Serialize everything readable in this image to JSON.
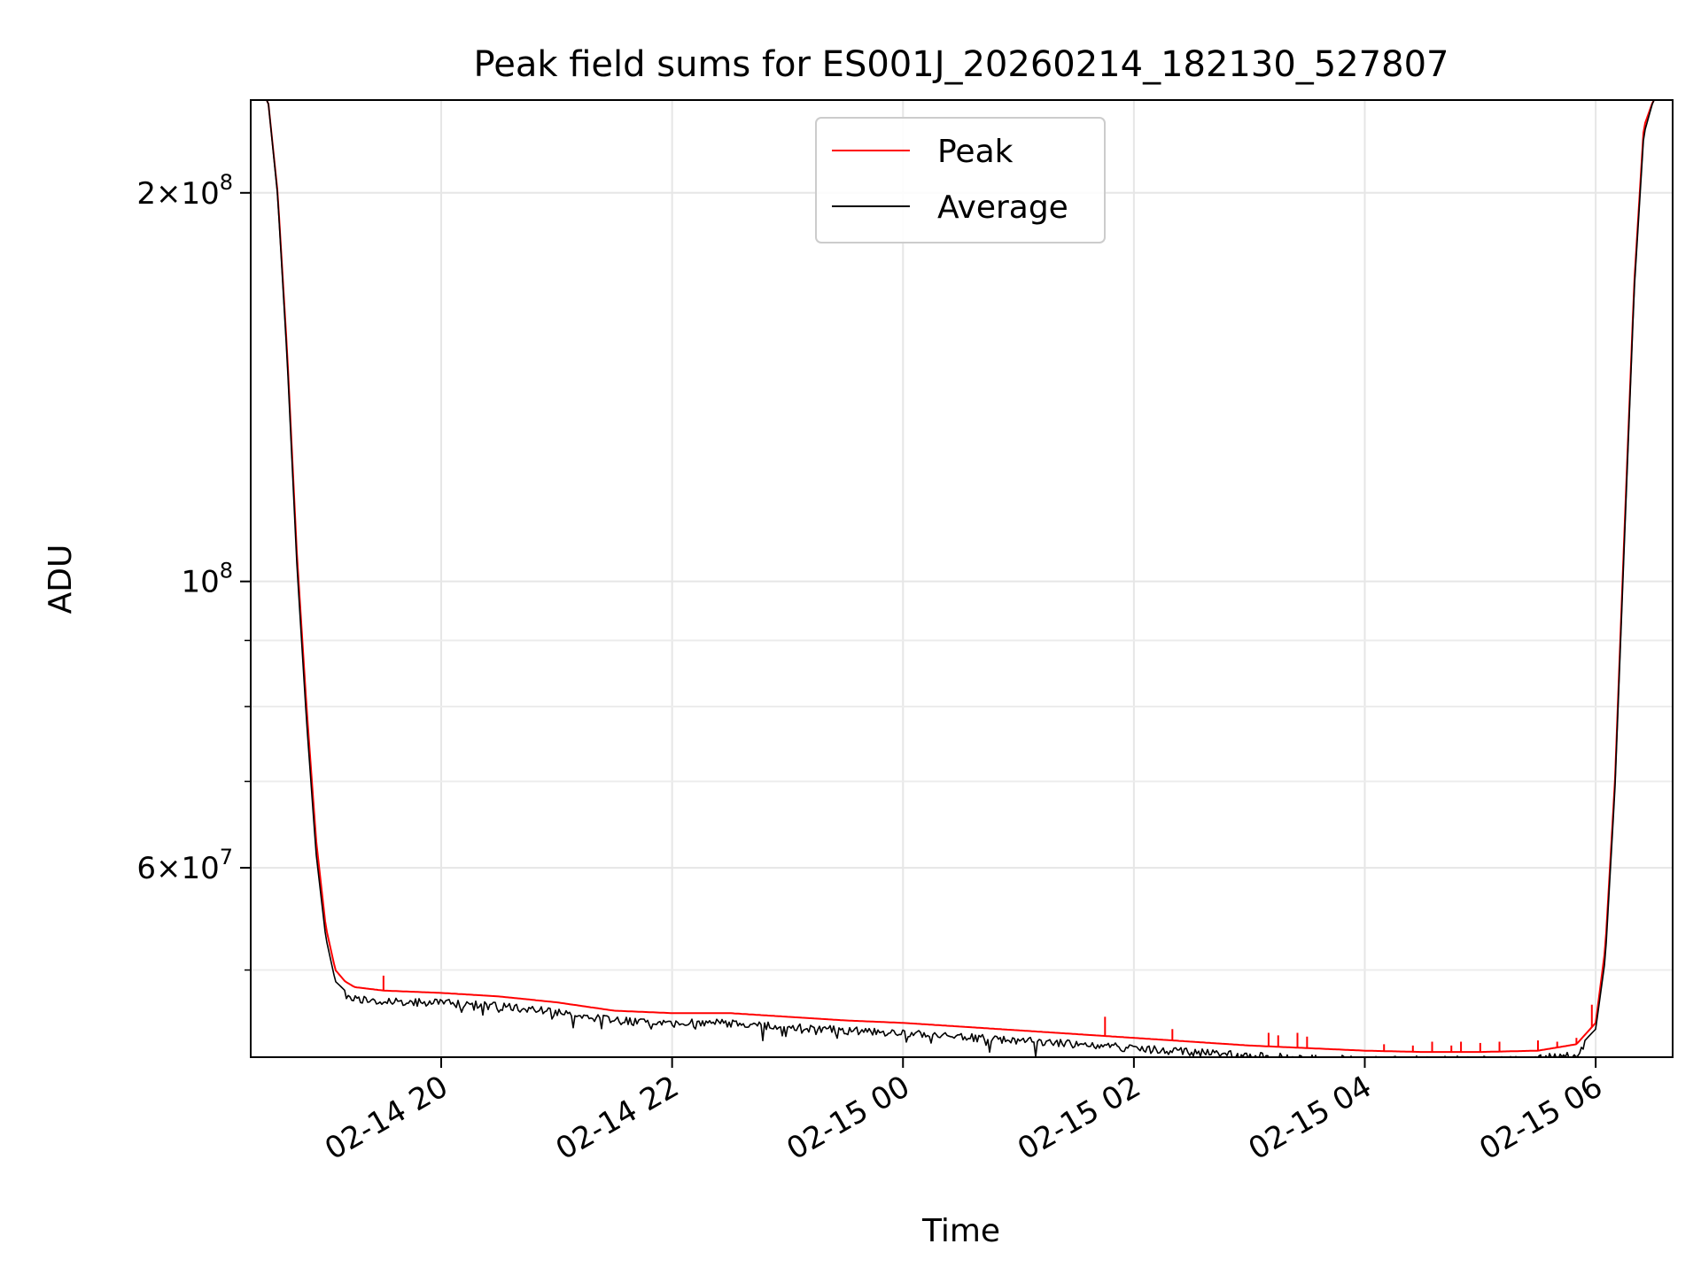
{
  "chart_data": {
    "type": "line",
    "title": "Peak field sums for ES001J_20260214_182130_527807",
    "xlabel": "Time",
    "ylabel": "ADU",
    "x_scale": "time",
    "y_scale": "log",
    "xlim": [
      "2026-02-14 18:21",
      "2026-02-15 06:40"
    ],
    "ylim": [
      42800000,
      236000000
    ],
    "x_ticks": [
      {
        "value": "2026-02-14 20:00",
        "label": "02-14 20"
      },
      {
        "value": "2026-02-14 22:00",
        "label": "02-14 22"
      },
      {
        "value": "2026-02-15 00:00",
        "label": "02-15 00"
      },
      {
        "value": "2026-02-15 02:00",
        "label": "02-15 02"
      },
      {
        "value": "2026-02-15 04:00",
        "label": "02-15 04"
      },
      {
        "value": "2026-02-15 06:00",
        "label": "02-15 06"
      }
    ],
    "y_major_ticks": [
      {
        "value": 200000000,
        "mantissa": "2",
        "base": "10",
        "exp": "8"
      },
      {
        "value": 100000000,
        "mantissa": "",
        "base": "10",
        "exp": "8"
      },
      {
        "value": 60000000,
        "mantissa": "6",
        "base": "10",
        "exp": "7"
      }
    ],
    "y_minor_ticks": [
      50000000,
      70000000,
      80000000,
      90000000
    ],
    "grid": true,
    "legend": "upper-center",
    "series": [
      {
        "name": "Peak",
        "color": "#ff0000",
        "x": [
          "2026-02-14 18:21",
          "2026-02-14 18:30",
          "2026-02-14 18:35",
          "2026-02-14 18:40",
          "2026-02-14 18:45",
          "2026-02-14 18:50",
          "2026-02-14 18:55",
          "2026-02-14 19:00",
          "2026-02-14 19:05",
          "2026-02-14 19:10",
          "2026-02-14 19:15",
          "2026-02-14 19:30",
          "2026-02-14 20:00",
          "2026-02-14 20:30",
          "2026-02-14 21:00",
          "2026-02-14 21:30",
          "2026-02-14 22:00",
          "2026-02-14 22:30",
          "2026-02-14 23:00",
          "2026-02-14 23:30",
          "2026-02-15 00:00",
          "2026-02-15 00:30",
          "2026-02-15 01:00",
          "2026-02-15 01:30",
          "2026-02-15 02:00",
          "2026-02-15 02:30",
          "2026-02-15 03:00",
          "2026-02-15 03:30",
          "2026-02-15 04:00",
          "2026-02-15 04:30",
          "2026-02-15 05:00",
          "2026-02-15 05:30",
          "2026-02-15 05:50",
          "2026-02-15 06:00",
          "2026-02-15 06:05",
          "2026-02-15 06:10",
          "2026-02-15 06:15",
          "2026-02-15 06:20",
          "2026-02-15 06:25",
          "2026-02-15 06:30",
          "2026-02-15 06:40"
        ],
        "y": [
          236000000,
          236000000,
          200000000,
          150000000,
          105000000,
          80000000,
          63000000,
          54000000,
          50000000,
          49000000,
          48500000,
          48200000,
          48000000,
          47700000,
          47200000,
          46500000,
          46300000,
          46300000,
          46000000,
          45700000,
          45500000,
          45200000,
          44900000,
          44600000,
          44300000,
          44000000,
          43700000,
          43500000,
          43300000,
          43200000,
          43200000,
          43300000,
          43800000,
          45500000,
          52000000,
          70000000,
          110000000,
          170000000,
          225000000,
          236000000,
          236000000
        ],
        "spikes": [
          {
            "x": "2026-02-14 19:30",
            "y": 49500000
          },
          {
            "x": "2026-02-15 01:45",
            "y": 46000000
          },
          {
            "x": "2026-02-15 02:20",
            "y": 45000000
          },
          {
            "x": "2026-02-15 03:10",
            "y": 44700000
          },
          {
            "x": "2026-02-15 03:15",
            "y": 44500000
          },
          {
            "x": "2026-02-15 03:25",
            "y": 44700000
          },
          {
            "x": "2026-02-15 03:30",
            "y": 44400000
          },
          {
            "x": "2026-02-15 04:10",
            "y": 43800000
          },
          {
            "x": "2026-02-15 04:25",
            "y": 43700000
          },
          {
            "x": "2026-02-15 04:35",
            "y": 44000000
          },
          {
            "x": "2026-02-15 04:45",
            "y": 43700000
          },
          {
            "x": "2026-02-15 04:50",
            "y": 44000000
          },
          {
            "x": "2026-02-15 05:00",
            "y": 43900000
          },
          {
            "x": "2026-02-15 05:10",
            "y": 44000000
          },
          {
            "x": "2026-02-15 05:30",
            "y": 44100000
          },
          {
            "x": "2026-02-15 05:40",
            "y": 44000000
          },
          {
            "x": "2026-02-15 05:50",
            "y": 44300000
          },
          {
            "x": "2026-02-15 05:58",
            "y": 47000000
          }
        ]
      },
      {
        "name": "Average",
        "color": "#000000",
        "x": [
          "2026-02-14 18:21",
          "2026-02-14 18:30",
          "2026-02-14 18:35",
          "2026-02-14 18:40",
          "2026-02-14 18:45",
          "2026-02-14 18:50",
          "2026-02-14 18:55",
          "2026-02-14 19:00",
          "2026-02-14 19:05",
          "2026-02-14 19:10",
          "2026-02-14 19:15",
          "2026-02-14 19:30",
          "2026-02-14 20:00",
          "2026-02-14 20:30",
          "2026-02-14 21:00",
          "2026-02-14 21:30",
          "2026-02-14 22:00",
          "2026-02-14 22:30",
          "2026-02-14 23:00",
          "2026-02-14 23:30",
          "2026-02-15 00:00",
          "2026-02-15 00:30",
          "2026-02-15 01:00",
          "2026-02-15 01:30",
          "2026-02-15 02:00",
          "2026-02-15 02:30",
          "2026-02-15 03:00",
          "2026-02-15 03:30",
          "2026-02-15 04:00",
          "2026-02-15 04:30",
          "2026-02-15 05:00",
          "2026-02-15 05:30",
          "2026-02-15 05:50",
          "2026-02-15 06:00",
          "2026-02-15 06:05",
          "2026-02-15 06:10",
          "2026-02-15 06:15",
          "2026-02-15 06:20",
          "2026-02-15 06:25",
          "2026-02-15 06:30",
          "2026-02-15 06:40"
        ],
        "y": [
          236000000,
          236000000,
          199000000,
          148000000,
          103000000,
          78000000,
          61500000,
          53000000,
          49000000,
          48200000,
          47800000,
          47600000,
          47500000,
          47200000,
          46700000,
          46000000,
          45800000,
          45800000,
          45500000,
          45200000,
          45000000,
          44700000,
          44400000,
          44100000,
          43800000,
          43500000,
          43200000,
          43000000,
          42900000,
          42900000,
          42900000,
          42950000,
          43400000,
          45000000,
          51000000,
          69000000,
          108000000,
          168000000,
          222000000,
          236000000,
          236000000
        ]
      }
    ]
  }
}
